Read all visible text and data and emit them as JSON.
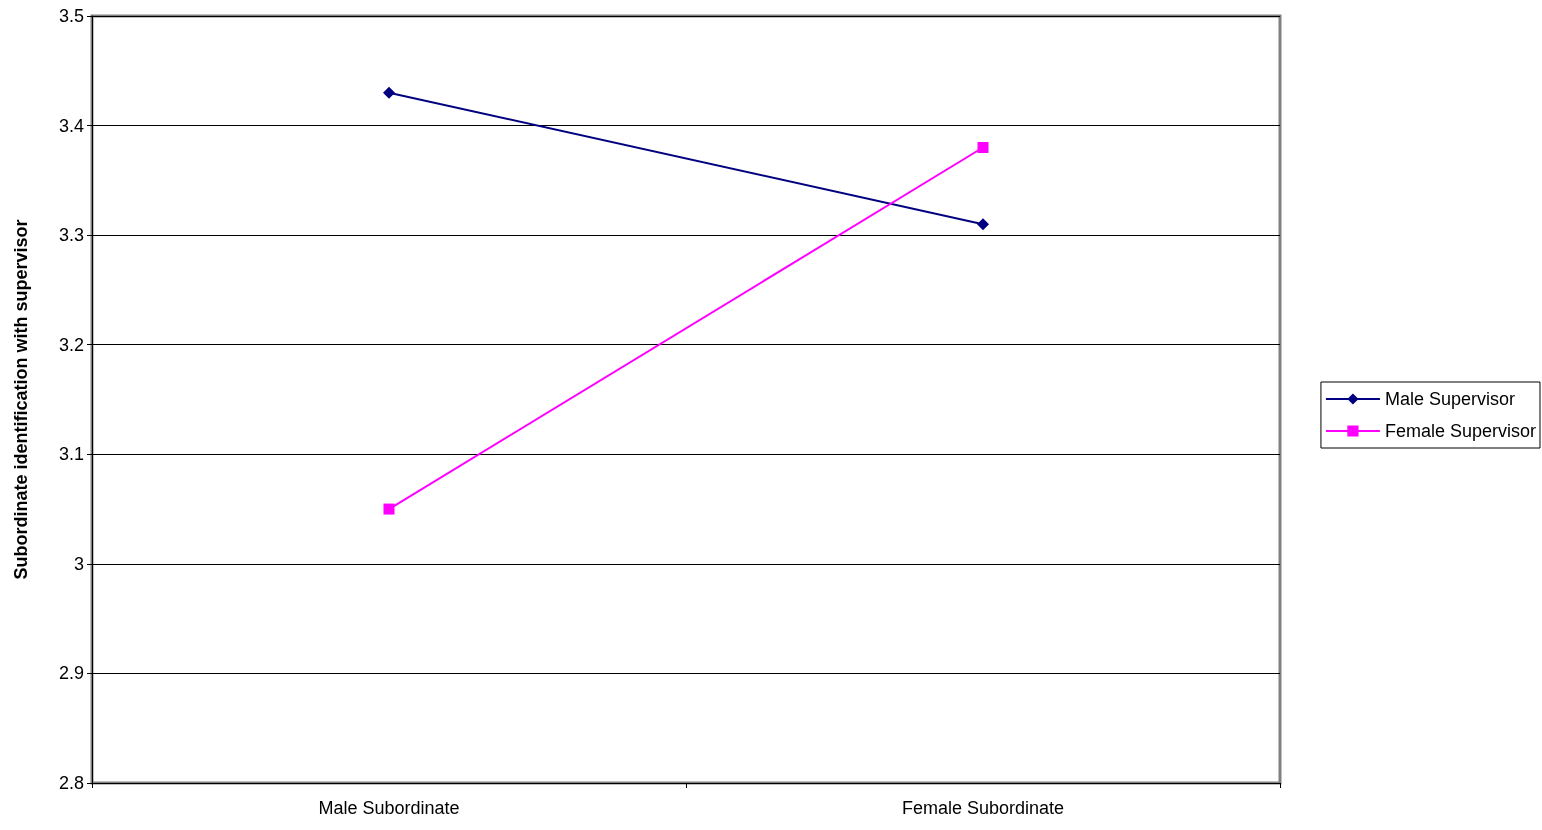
{
  "chart_data": {
    "type": "line",
    "ylabel": "Subordinate identification with supervisor",
    "categories": [
      "Male Subordinate",
      "Female Subordinate"
    ],
    "series": [
      {
        "name": "Male Supervisor",
        "color": "#000080",
        "values": [
          3.43,
          3.31
        ],
        "marker": "diamond"
      },
      {
        "name": "Female Supervisor",
        "color": "#ff00ff",
        "values": [
          3.05,
          3.38
        ],
        "marker": "square"
      }
    ],
    "ylim": [
      2.8,
      3.5
    ],
    "yticks": [
      2.8,
      2.9,
      3,
      3.1,
      3.2,
      3.3,
      3.4,
      3.5
    ],
    "grid": "y",
    "legend": "right",
    "line_style": "solid"
  }
}
